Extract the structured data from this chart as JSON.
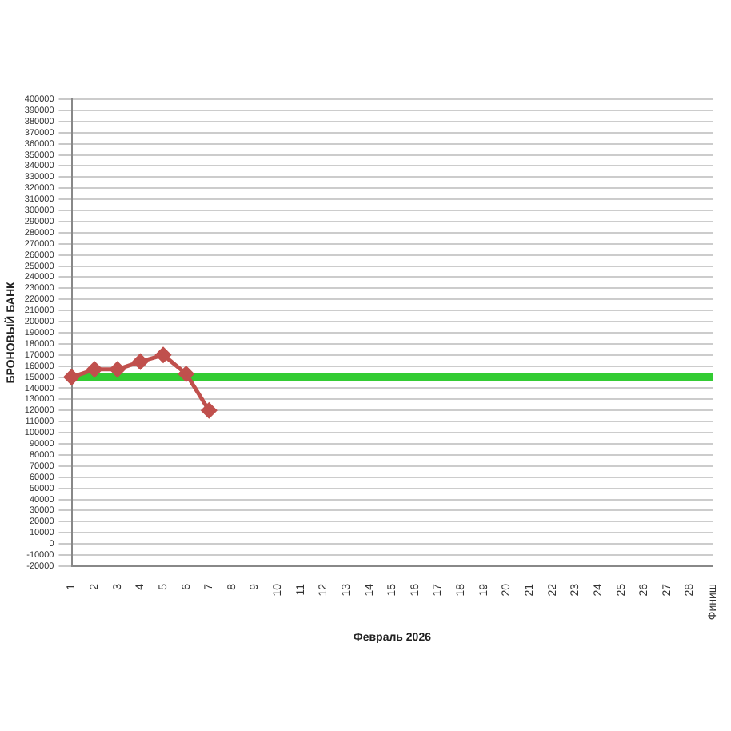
{
  "chart_data": {
    "type": "line",
    "xlabel": "Февраль 2026",
    "ylabel": "БРОНОВЫЙ БАНК",
    "categories": [
      "1",
      "2",
      "3",
      "4",
      "5",
      "6",
      "7",
      "8",
      "9",
      "10",
      "11",
      "12",
      "13",
      "14",
      "15",
      "16",
      "17",
      "18",
      "19",
      "20",
      "21",
      "22",
      "23",
      "24",
      "25",
      "26",
      "27",
      "28",
      "Финиш"
    ],
    "series": [
      {
        "color": "#c0504d",
        "values": [
          150000,
          157000,
          157000,
          164000,
          170000,
          153000,
          120000,
          null,
          null,
          null,
          null,
          null,
          null,
          null,
          null,
          null,
          null,
          null,
          null,
          null,
          null,
          null,
          null,
          null,
          null,
          null,
          null,
          null,
          null
        ]
      }
    ],
    "ylim": [
      -20000,
      400000
    ],
    "yticks": [
      -20000,
      -10000,
      0,
      10000,
      20000,
      30000,
      40000,
      50000,
      60000,
      70000,
      80000,
      90000,
      100000,
      110000,
      120000,
      130000,
      140000,
      150000,
      160000,
      170000,
      180000,
      190000,
      200000,
      210000,
      220000,
      230000,
      240000,
      250000,
      260000,
      270000,
      280000,
      290000,
      300000,
      310000,
      320000,
      330000,
      340000,
      350000,
      360000,
      370000,
      380000,
      390000,
      400000
    ],
    "ref_lines": [
      {
        "axis": "y",
        "value": 150000,
        "color": "#33cc33"
      }
    ],
    "grid": "y",
    "legend": false,
    "marker": "diamond",
    "line_style": "solid"
  }
}
